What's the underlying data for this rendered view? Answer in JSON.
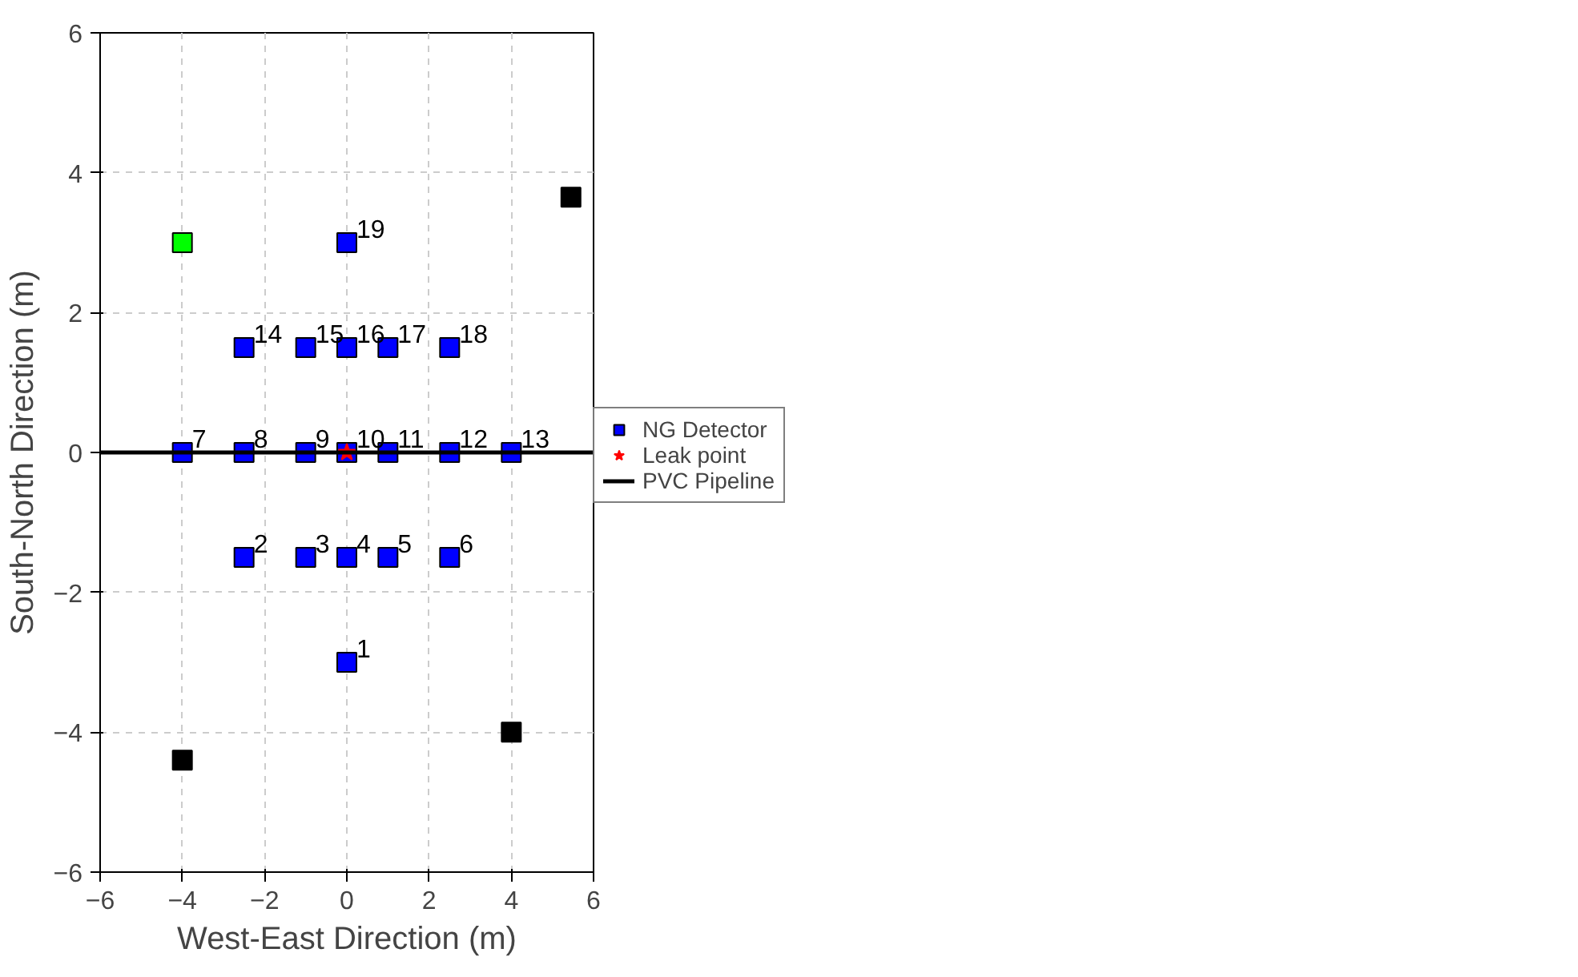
{
  "chart_data": {
    "type": "scatter",
    "xlabel": "West-East Direction (m)",
    "ylabel": "South-North Direction (m)",
    "xlim": [
      -6,
      6
    ],
    "ylim": [
      -6,
      6
    ],
    "xticks": [
      -6,
      -4,
      -2,
      0,
      2,
      4,
      6
    ],
    "yticks": [
      -6,
      -4,
      -2,
      0,
      2,
      4,
      6
    ],
    "grid": true,
    "legend": "right",
    "series": [
      {
        "name": "NG Detector",
        "color": "#0000ff",
        "marker": "square",
        "x": [
          0,
          -2.5,
          -1,
          0,
          1,
          2.5,
          -4,
          -2.5,
          -1,
          0,
          1,
          2.5,
          4,
          -2.5,
          -1,
          0,
          1,
          2.5,
          0
        ],
        "values": [
          -3,
          -1.5,
          -1.5,
          -1.5,
          -1.5,
          -1.5,
          0,
          0,
          0,
          0,
          0,
          0,
          0,
          1.5,
          1.5,
          1.5,
          1.5,
          1.5,
          3
        ]
      },
      {
        "name": "Leak point",
        "color": "#ff0000",
        "marker": "star",
        "x": [
          0
        ],
        "values": [
          0
        ]
      },
      {
        "color": "#000000",
        "marker": "square",
        "x": [
          -4,
          4,
          5.45
        ],
        "values": [
          -4.4,
          -4,
          3.65
        ]
      },
      {
        "color": "#00ff00",
        "marker": "square",
        "x": [
          -4
        ],
        "values": [
          3
        ]
      },
      {
        "name": "PVC Pipeline",
        "type": "line",
        "color": "#000000",
        "x": [
          -6,
          6
        ],
        "values": [
          0,
          0
        ],
        "line_style": "solid"
      }
    ],
    "annotations": [
      {
        "text": "1",
        "x": 0,
        "y": -3
      },
      {
        "text": "2",
        "x": -2.5,
        "y": -1.5
      },
      {
        "text": "3",
        "x": -1,
        "y": -1.5
      },
      {
        "text": "4",
        "x": 0,
        "y": -1.5
      },
      {
        "text": "5",
        "x": 1,
        "y": -1.5
      },
      {
        "text": "6",
        "x": 2.5,
        "y": -1.5
      },
      {
        "text": "7",
        "x": -4,
        "y": 0
      },
      {
        "text": "8",
        "x": -2.5,
        "y": 0
      },
      {
        "text": "9",
        "x": -1,
        "y": 0
      },
      {
        "text": "10",
        "x": 0,
        "y": 0
      },
      {
        "text": "11",
        "x": 1,
        "y": 0
      },
      {
        "text": "12",
        "x": 2.5,
        "y": 0
      },
      {
        "text": "13",
        "x": 4,
        "y": 0
      },
      {
        "text": "14",
        "x": -2.5,
        "y": 1.5
      },
      {
        "text": "15",
        "x": -1,
        "y": 1.5
      },
      {
        "text": "16",
        "x": 0,
        "y": 1.5
      },
      {
        "text": "17",
        "x": 1,
        "y": 1.5
      },
      {
        "text": "18",
        "x": 2.5,
        "y": 1.5
      },
      {
        "text": "19",
        "x": 0,
        "y": 3
      }
    ]
  }
}
